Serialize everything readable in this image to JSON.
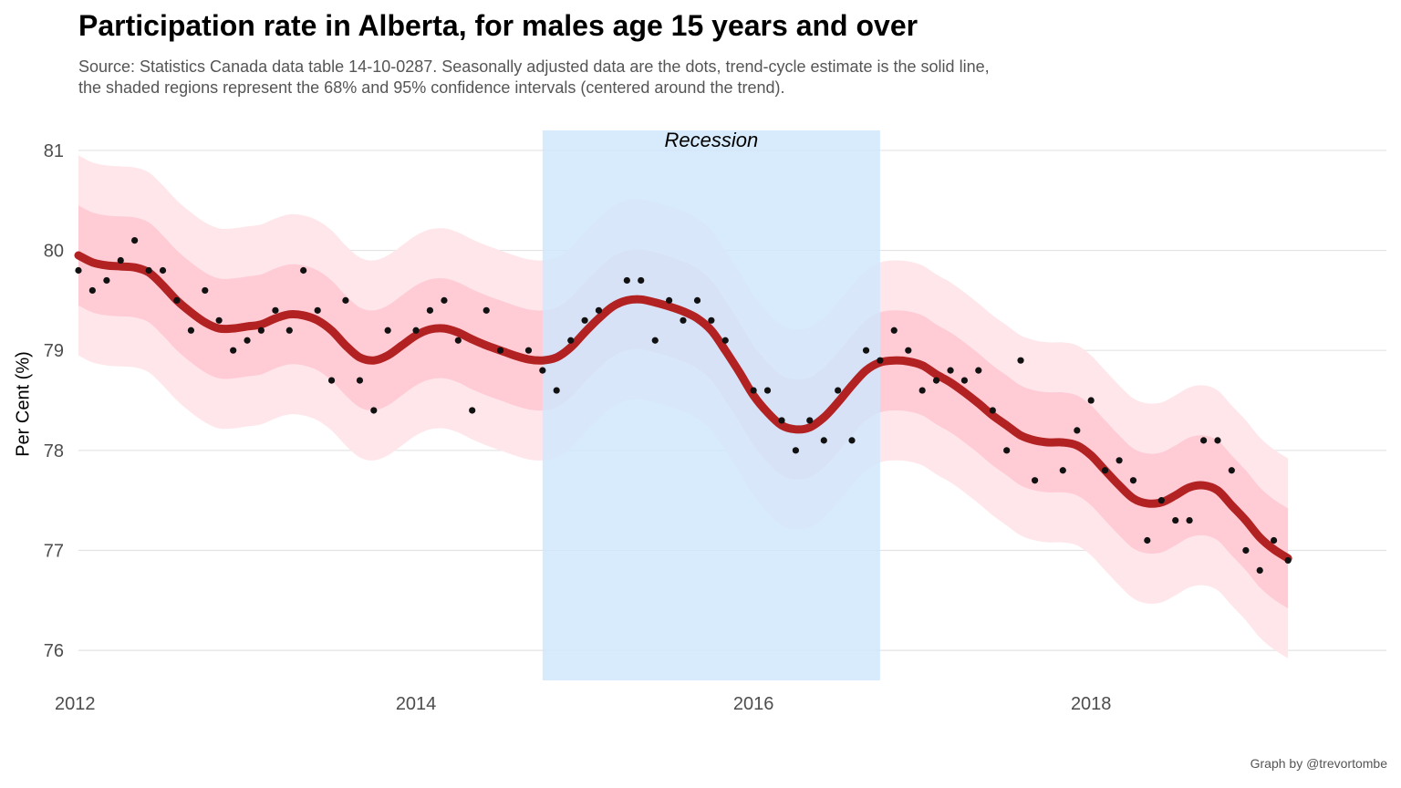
{
  "title": "Participation rate in Alberta, for males age 15 years and over",
  "subtitle_lines": [
    "Source: Statistics Canada data table 14-10-0287. Seasonally adjusted data are the dots, trend-cycle estimate is the solid line,",
    "the shaded regions represent the 68% and 95% confidence intervals (centered around the trend)."
  ],
  "caption": "Graph by @trevortombe",
  "colors": {
    "trend_line": "#b22222",
    "ci68": "#ffccd6",
    "ci95": "#ffe6ea",
    "recession": "#cfe6fc",
    "points": "#111111",
    "grid": "#e3e3e3",
    "tick_text": "#4d4d4d"
  },
  "chart_data": {
    "type": "line",
    "title": "Participation rate in Alberta, for males age 15 years and over",
    "xlabel": "",
    "ylabel": "Per Cent (%)",
    "x_unit": "year",
    "xlim": [
      2012.0,
      2019.75
    ],
    "ylim": [
      75.7,
      81.2
    ],
    "x_ticks": [
      {
        "value": 2012,
        "label": "2012"
      },
      {
        "value": 2014,
        "label": "2014"
      },
      {
        "value": 2016,
        "label": "2016"
      },
      {
        "value": 2018,
        "label": "2018"
      }
    ],
    "y_ticks": [
      {
        "value": 76,
        "label": "76"
      },
      {
        "value": 77,
        "label": "77"
      },
      {
        "value": 78,
        "label": "78"
      },
      {
        "value": 79,
        "label": "79"
      },
      {
        "value": 80,
        "label": "80"
      },
      {
        "value": 81,
        "label": "81"
      }
    ],
    "grid": true,
    "recession": {
      "start": 2014.75,
      "end": 2016.75,
      "label": "Recession"
    },
    "points": [
      [
        2012.0,
        79.8
      ],
      [
        2012.083,
        79.6
      ],
      [
        2012.167,
        79.7
      ],
      [
        2012.25,
        79.9
      ],
      [
        2012.333,
        80.1
      ],
      [
        2012.417,
        79.8
      ],
      [
        2012.5,
        79.8
      ],
      [
        2012.583,
        79.5
      ],
      [
        2012.667,
        79.2
      ],
      [
        2012.75,
        79.6
      ],
      [
        2012.833,
        79.3
      ],
      [
        2012.917,
        79.0
      ],
      [
        2013.0,
        79.1
      ],
      [
        2013.083,
        79.2
      ],
      [
        2013.167,
        79.4
      ],
      [
        2013.25,
        79.2
      ],
      [
        2013.333,
        79.8
      ],
      [
        2013.417,
        79.4
      ],
      [
        2013.5,
        78.7
      ],
      [
        2013.583,
        79.5
      ],
      [
        2013.667,
        78.7
      ],
      [
        2013.75,
        78.4
      ],
      [
        2013.833,
        79.2
      ],
      [
        2014.0,
        79.2
      ],
      [
        2014.083,
        79.4
      ],
      [
        2014.167,
        79.5
      ],
      [
        2014.25,
        79.1
      ],
      [
        2014.333,
        78.4
      ],
      [
        2014.417,
        79.4
      ],
      [
        2014.5,
        79.0
      ],
      [
        2014.667,
        79.0
      ],
      [
        2014.75,
        78.8
      ],
      [
        2014.833,
        78.6
      ],
      [
        2014.917,
        79.1
      ],
      [
        2015.0,
        79.3
      ],
      [
        2015.083,
        79.4
      ],
      [
        2015.25,
        79.7
      ],
      [
        2015.333,
        79.7
      ],
      [
        2015.417,
        79.1
      ],
      [
        2015.5,
        79.5
      ],
      [
        2015.583,
        79.3
      ],
      [
        2015.667,
        79.5
      ],
      [
        2015.75,
        79.3
      ],
      [
        2015.833,
        79.1
      ],
      [
        2016.0,
        78.6
      ],
      [
        2016.083,
        78.6
      ],
      [
        2016.167,
        78.3
      ],
      [
        2016.25,
        78.0
      ],
      [
        2016.333,
        78.3
      ],
      [
        2016.417,
        78.1
      ],
      [
        2016.5,
        78.6
      ],
      [
        2016.583,
        78.1
      ],
      [
        2016.667,
        79.0
      ],
      [
        2016.75,
        78.9
      ],
      [
        2016.833,
        79.2
      ],
      [
        2016.917,
        79.0
      ],
      [
        2017.0,
        78.6
      ],
      [
        2017.083,
        78.7
      ],
      [
        2017.167,
        78.8
      ],
      [
        2017.25,
        78.7
      ],
      [
        2017.333,
        78.8
      ],
      [
        2017.417,
        78.4
      ],
      [
        2017.5,
        78.0
      ],
      [
        2017.583,
        78.9
      ],
      [
        2017.667,
        77.7
      ],
      [
        2017.833,
        77.8
      ],
      [
        2017.917,
        78.2
      ],
      [
        2018.0,
        78.5
      ],
      [
        2018.083,
        77.8
      ],
      [
        2018.167,
        77.9
      ],
      [
        2018.25,
        77.7
      ],
      [
        2018.333,
        77.1
      ],
      [
        2018.417,
        77.5
      ],
      [
        2018.5,
        77.3
      ],
      [
        2018.583,
        77.3
      ],
      [
        2018.667,
        78.1
      ],
      [
        2018.75,
        78.1
      ],
      [
        2018.833,
        77.8
      ],
      [
        2018.917,
        77.0
      ],
      [
        2019.0,
        76.8
      ],
      [
        2019.083,
        77.1
      ],
      [
        2019.167,
        76.9
      ]
    ],
    "trend": [
      [
        2012.0,
        79.95
      ],
      [
        2012.083,
        79.88
      ],
      [
        2012.167,
        79.85
      ],
      [
        2012.25,
        79.84
      ],
      [
        2012.333,
        79.83
      ],
      [
        2012.417,
        79.78
      ],
      [
        2012.5,
        79.65
      ],
      [
        2012.583,
        79.5
      ],
      [
        2012.667,
        79.38
      ],
      [
        2012.75,
        79.28
      ],
      [
        2012.833,
        79.22
      ],
      [
        2012.917,
        79.22
      ],
      [
        2013.0,
        79.24
      ],
      [
        2013.083,
        79.26
      ],
      [
        2013.167,
        79.32
      ],
      [
        2013.25,
        79.36
      ],
      [
        2013.333,
        79.35
      ],
      [
        2013.417,
        79.3
      ],
      [
        2013.5,
        79.2
      ],
      [
        2013.583,
        79.05
      ],
      [
        2013.667,
        78.93
      ],
      [
        2013.75,
        78.9
      ],
      [
        2013.833,
        78.95
      ],
      [
        2013.917,
        79.05
      ],
      [
        2014.0,
        79.15
      ],
      [
        2014.083,
        79.21
      ],
      [
        2014.167,
        79.22
      ],
      [
        2014.25,
        79.18
      ],
      [
        2014.333,
        79.11
      ],
      [
        2014.417,
        79.05
      ],
      [
        2014.5,
        79.0
      ],
      [
        2014.583,
        78.95
      ],
      [
        2014.667,
        78.91
      ],
      [
        2014.75,
        78.9
      ],
      [
        2014.833,
        78.93
      ],
      [
        2014.917,
        79.03
      ],
      [
        2015.0,
        79.18
      ],
      [
        2015.083,
        79.32
      ],
      [
        2015.167,
        79.44
      ],
      [
        2015.25,
        79.5
      ],
      [
        2015.333,
        79.51
      ],
      [
        2015.417,
        79.48
      ],
      [
        2015.5,
        79.44
      ],
      [
        2015.583,
        79.39
      ],
      [
        2015.667,
        79.32
      ],
      [
        2015.75,
        79.2
      ],
      [
        2015.833,
        79.0
      ],
      [
        2015.917,
        78.78
      ],
      [
        2016.0,
        78.55
      ],
      [
        2016.083,
        78.38
      ],
      [
        2016.167,
        78.25
      ],
      [
        2016.25,
        78.21
      ],
      [
        2016.333,
        78.23
      ],
      [
        2016.417,
        78.33
      ],
      [
        2016.5,
        78.48
      ],
      [
        2016.583,
        78.65
      ],
      [
        2016.667,
        78.8
      ],
      [
        2016.75,
        78.88
      ],
      [
        2016.833,
        78.9
      ],
      [
        2016.917,
        78.89
      ],
      [
        2017.0,
        78.85
      ],
      [
        2017.083,
        78.76
      ],
      [
        2017.167,
        78.68
      ],
      [
        2017.25,
        78.58
      ],
      [
        2017.333,
        78.47
      ],
      [
        2017.417,
        78.35
      ],
      [
        2017.5,
        78.25
      ],
      [
        2017.583,
        78.15
      ],
      [
        2017.667,
        78.1
      ],
      [
        2017.75,
        78.08
      ],
      [
        2017.833,
        78.08
      ],
      [
        2017.917,
        78.05
      ],
      [
        2018.0,
        77.95
      ],
      [
        2018.083,
        77.8
      ],
      [
        2018.167,
        77.65
      ],
      [
        2018.25,
        77.52
      ],
      [
        2018.333,
        77.47
      ],
      [
        2018.417,
        77.48
      ],
      [
        2018.5,
        77.55
      ],
      [
        2018.583,
        77.63
      ],
      [
        2018.667,
        77.65
      ],
      [
        2018.75,
        77.6
      ],
      [
        2018.833,
        77.45
      ],
      [
        2018.917,
        77.3
      ],
      [
        2019.0,
        77.13
      ],
      [
        2019.083,
        77.01
      ],
      [
        2019.167,
        76.92
      ]
    ],
    "ci68_halfwidth": 0.5,
    "ci95_halfwidth": 1.0
  }
}
